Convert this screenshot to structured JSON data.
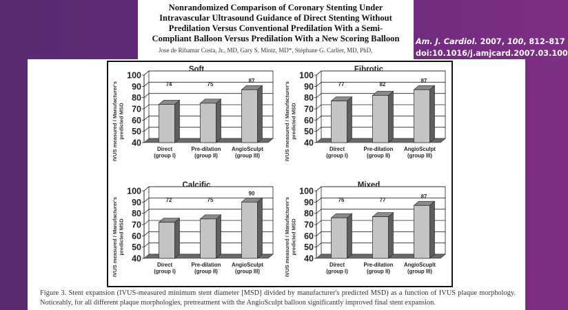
{
  "header": {
    "title_lines": [
      "Nonrandomized Comparison of Coronary Stenting Under",
      "Intravascular Ultrasound Guidance of Direct Stenting Without",
      "Predilation Versus Conventional Predilation With a Semi-",
      "Compliant Balloon Versus Predilation With a New Scoring Balloon"
    ],
    "authors": "Jose de Ribamar Costa, Jr., MD, Gary S. Mintz, MD*, Stéphane G. Carlier, MD, PhD,"
  },
  "citation": {
    "journal": "Am. J. Cardiol.",
    "year": "2007,",
    "volume": "100",
    "pages": ", 812–817",
    "doi": "doi:10.1016/j.amjcard.2007.03.100"
  },
  "caption": "Figure 3. Stent expansion (IVUS-measured minimum stent diameter [MSD] divided by manufacturer's predicted MSD) as a function of IVUS plaque morphology. Noticeably, for all different plaque morphologies, pretreatment with the AngioSculpt balloon significantly improved final stent expansion.",
  "colors": {
    "bar_front": "#c4c4c4",
    "bar_side": "#5e5e5e",
    "bar_top": "#8a8a8a",
    "floor": "#6a6a6a",
    "background_left": "#5a2a72",
    "background_right": "#7e2f84"
  },
  "chart_data": [
    {
      "type": "bar",
      "title": "Soft",
      "categories": [
        [
          "Direct",
          "(group I)"
        ],
        [
          "Pre-dilation",
          "(group II)"
        ],
        [
          "AngioSculpt",
          "(group III)"
        ]
      ],
      "values": [
        74,
        75,
        87
      ],
      "data_labels": [
        "74",
        "75",
        "87"
      ],
      "ylabel": [
        "IVUS measured / Manufacturer's",
        "predicted MSD"
      ],
      "ylim": [
        40,
        100
      ],
      "yticks": [
        "40",
        "50",
        "60",
        "70",
        "80",
        "90",
        "100"
      ],
      "grid": true
    },
    {
      "type": "bar",
      "title": "Fibrotic",
      "categories": [
        [
          "Direct",
          "(group I)"
        ],
        [
          "Pre-dilation",
          "(group II)"
        ],
        [
          "AngioSculpt",
          "(group III)"
        ]
      ],
      "values": [
        77,
        82,
        87
      ],
      "data_labels": [
        "77",
        "82",
        "87"
      ],
      "ylabel": [
        "IVUS measured / Manufacturer's",
        "predicted MSD"
      ],
      "ylim": [
        40,
        100
      ],
      "yticks": [
        "40",
        "50",
        "60",
        "70",
        "80",
        "90",
        "100"
      ],
      "grid": true
    },
    {
      "type": "bar",
      "title": "Calcific",
      "categories": [
        [
          "Direct",
          "(group I)"
        ],
        [
          "Pre-dilation",
          "(group II)"
        ],
        [
          "AngioSculpt",
          "(group III)"
        ]
      ],
      "values": [
        72,
        75,
        90
      ],
      "data_labels": [
        "72",
        "75",
        "90"
      ],
      "ylabel": [
        "IVUS measured / Manufacturer's",
        "predicted MSD"
      ],
      "ylim": [
        40,
        100
      ],
      "yticks": [
        "40",
        "50",
        "60",
        "70",
        "80",
        "90",
        "100"
      ],
      "grid": true
    },
    {
      "type": "bar",
      "title": "Mixed",
      "categories": [
        [
          "Direct",
          "(group I)"
        ],
        [
          "Pre-dilation",
          "(group II)"
        ],
        [
          "AngioScuplt",
          "(group III)"
        ]
      ],
      "values": [
        76,
        77,
        87
      ],
      "data_labels": [
        "76",
        "77",
        "87"
      ],
      "ylabel": [
        "IVUS measured / Manufacturer's",
        "predicted MSD"
      ],
      "ylim": [
        40,
        100
      ],
      "yticks": [
        "40",
        "50",
        "60",
        "70",
        "80",
        "90",
        "100"
      ],
      "grid": true
    }
  ]
}
